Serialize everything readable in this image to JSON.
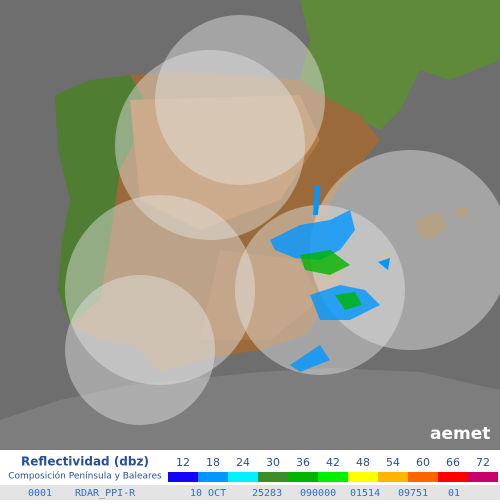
{
  "logo": "aemet",
  "legend": {
    "title": "Reflectividad (dbz)",
    "subtitle": "Composición Península y Baleares",
    "items": [
      {
        "label": 12,
        "color": "#1400ff"
      },
      {
        "label": 18,
        "color": "#0096ff"
      },
      {
        "label": 24,
        "color": "#00f0ff"
      },
      {
        "label": 30,
        "color": "#3c8c28"
      },
      {
        "label": 36,
        "color": "#00b400"
      },
      {
        "label": 42,
        "color": "#00f000"
      },
      {
        "label": 48,
        "color": "#ffff00"
      },
      {
        "label": 54,
        "color": "#ffb400"
      },
      {
        "label": 60,
        "color": "#ff6400"
      },
      {
        "label": 66,
        "color": "#ff0000"
      },
      {
        "label": 72,
        "color": "#c8006e"
      }
    ]
  },
  "footer": [
    "0001",
    "RDAR_PPI-R",
    "10 OCT",
    "25283",
    "090000",
    "01514",
    "09751",
    "01"
  ]
}
